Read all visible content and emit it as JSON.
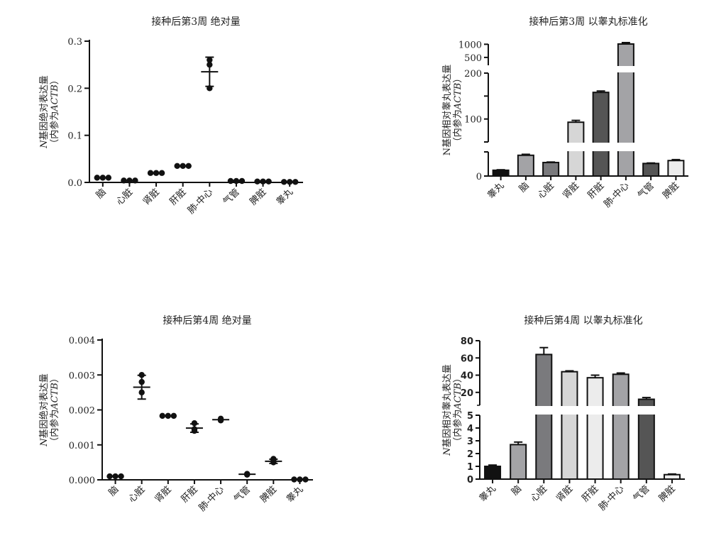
{
  "chart_data": [
    {
      "type": "scatter",
      "title": "接种后第3周 绝对量",
      "ylabel_italic": "N",
      "ylabel_line1": "基因绝对表达量",
      "ylabel_line2_prefix": "（内参为",
      "ylabel_line2_italic": "ACTB",
      "ylabel_line2_suffix": "）",
      "ylim": [
        0,
        0.3
      ],
      "yticks": [
        "0.0",
        "0.1",
        "0.2",
        "0.3"
      ],
      "categories": [
        "脑",
        "心脏",
        "肾脏",
        "肝脏",
        "肺-中心",
        "气管",
        "脾脏",
        "睾丸"
      ],
      "points": [
        [
          0.01,
          0.01,
          0.01
        ],
        [
          0.004,
          0.004,
          0.004
        ],
        [
          0.02,
          0.02,
          0.02
        ],
        [
          0.035,
          0.035,
          0.035
        ],
        [
          0.2,
          0.25,
          0.26
        ],
        [
          0.003,
          0.003,
          0.003
        ],
        [
          0.002,
          0.002,
          0.002
        ],
        [
          0.001,
          0.001,
          0.001
        ]
      ],
      "means": [
        0.01,
        0.004,
        0.02,
        0.035,
        0.235,
        0.003,
        0.002,
        0.001
      ],
      "sd": [
        0,
        0,
        0,
        0,
        0.031,
        0,
        0,
        0
      ]
    },
    {
      "type": "bar",
      "title": "接种后第3周 以睾丸标准化",
      "ylabel_line1": "N基因相对睾丸表达量",
      "ylabel_line2_prefix": "（内参为",
      "ylabel_line2_italic": "ACTB",
      "ylabel_line2_suffix": "）",
      "axis_break": true,
      "ylim": [
        0,
        1000
      ],
      "yticks": [
        "0",
        "100",
        "200",
        "500",
        "1000"
      ],
      "categories": [
        "睾丸",
        "脑",
        "心脏",
        "肾脏",
        "肝脏",
        "肺-中心",
        "气管",
        "脾脏"
      ],
      "values": [
        12,
        43,
        28,
        93,
        158,
        1010,
        26,
        32
      ],
      "errors": [
        1,
        2,
        1,
        4,
        3,
        30,
        1,
        2
      ],
      "colors": [
        "#111111",
        "#a3a3a6",
        "#7a7a7d",
        "#d6d6d6",
        "#555555",
        "#a3a3a6",
        "#555555",
        "#ececec"
      ]
    },
    {
      "type": "scatter",
      "title": "接种后第4周 绝对量",
      "ylabel_italic": "N",
      "ylabel_line1": "基因绝对表达量",
      "ylabel_line2_prefix": "（内参为",
      "ylabel_line2_italic": "ACTB",
      "ylabel_line2_suffix": "）",
      "ylim": [
        0,
        0.004
      ],
      "yticks": [
        "0.000",
        "0.001",
        "0.002",
        "0.003",
        "0.004"
      ],
      "categories": [
        "脑",
        "心脏",
        "肾脏",
        "肝脏",
        "肺-中心",
        "气管",
        "脾脏",
        "睾丸"
      ],
      "points": [
        [
          0.0001,
          0.0001,
          0.0001
        ],
        [
          0.0025,
          0.0028,
          0.003
        ],
        [
          0.00183,
          0.00183,
          0.00183
        ],
        [
          0.0014,
          0.00145,
          0.00162
        ],
        [
          0.0017,
          0.00172,
          0.00175
        ],
        [
          0.00015,
          0.00017,
          0.00015
        ],
        [
          0.0005,
          0.00055,
          0.0006
        ],
        [
          1e-05,
          1e-05,
          1e-05
        ]
      ],
      "means": [
        0.0001,
        0.00265,
        0.00183,
        0.00148,
        0.00172,
        0.00016,
        0.00053,
        1e-05
      ],
      "sd": [
        0,
        0.00034,
        0,
        0.00012,
        0,
        0,
        6e-05,
        0
      ]
    },
    {
      "type": "bar",
      "title": "接种后第4周 以睾丸标准化",
      "ylabel_italic": "N",
      "ylabel_line1": "基因相对睾丸表达量",
      "ylabel_line2_prefix": "（内参为",
      "ylabel_line2_italic": "ACTB",
      "ylabel_line2_suffix": "）",
      "axis_break": true,
      "ylim": [
        0,
        80
      ],
      "yticks": [
        "0",
        "1",
        "2",
        "3",
        "4",
        "5",
        "20",
        "40",
        "60",
        "80"
      ],
      "categories": [
        "睾丸",
        "脑",
        "心脏",
        "肾脏",
        "肝脏",
        "肺-中心",
        "气管",
        "脾脏"
      ],
      "values": [
        1,
        2.7,
        64,
        44,
        37,
        41,
        12,
        0.35
      ],
      "errors": [
        0.1,
        0.2,
        8,
        1,
        3,
        1.5,
        2,
        0.05
      ],
      "colors": [
        "#111111",
        "#a3a3a6",
        "#7a7a7d",
        "#d6d6d6",
        "#ececec",
        "#a3a3a6",
        "#555555",
        "#ececec"
      ]
    }
  ]
}
